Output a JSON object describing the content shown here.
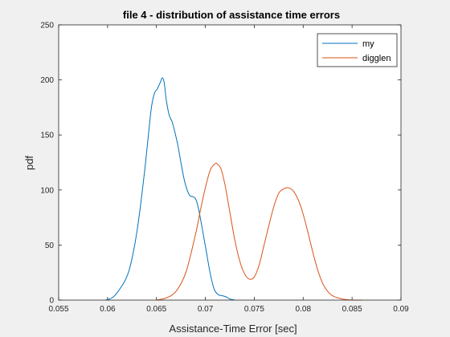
{
  "chart_data": {
    "type": "line",
    "title": "file 4 - distribution of assistance time errors",
    "xlabel": "Assistance-Time Error [sec]",
    "ylabel": "pdf",
    "xlim": [
      0.055,
      0.09
    ],
    "ylim": [
      0,
      250
    ],
    "xticks": [
      0.055,
      0.06,
      0.065,
      0.07,
      0.075,
      0.08,
      0.085,
      0.09
    ],
    "xtick_labels": [
      "0.055",
      "0.06",
      "0.065",
      "0.07",
      "0.075",
      "0.08",
      "0.085",
      "0.09"
    ],
    "yticks": [
      0,
      50,
      100,
      150,
      200,
      250
    ],
    "ytick_labels": [
      "0",
      "50",
      "100",
      "150",
      "200",
      "250"
    ],
    "legend_position": "top-right",
    "grid": false,
    "series": [
      {
        "name": "my",
        "color": "#0072BD",
        "x": [
          0.0598,
          0.0602,
          0.0606,
          0.061,
          0.0614,
          0.0618,
          0.0622,
          0.0626,
          0.063,
          0.0634,
          0.0638,
          0.0642,
          0.0645,
          0.0648,
          0.0651,
          0.0654,
          0.0656,
          0.0658,
          0.066,
          0.0663,
          0.0666,
          0.0669,
          0.0672,
          0.0675,
          0.0678,
          0.0681,
          0.0684,
          0.0687,
          0.069,
          0.0693,
          0.0697,
          0.0701,
          0.0705,
          0.0709,
          0.0713,
          0.0717,
          0.0721,
          0.0725,
          0.073
        ],
        "y": [
          0,
          1,
          3,
          7,
          12,
          18,
          27,
          42,
          62,
          88,
          118,
          152,
          176,
          188,
          192,
          198,
          202,
          197,
          182,
          168,
          162,
          152,
          140,
          125,
          111,
          101,
          95,
          94,
          92,
          83,
          64,
          44,
          24,
          10,
          5,
          4,
          3,
          1,
          0
        ]
      },
      {
        "name": "digglen",
        "color": "#D95319",
        "x": [
          0.065,
          0.066,
          0.067,
          0.068,
          0.069,
          0.0695,
          0.07,
          0.0705,
          0.071,
          0.0713,
          0.0716,
          0.072,
          0.0725,
          0.073,
          0.0735,
          0.074,
          0.0745,
          0.075,
          0.0755,
          0.076,
          0.0765,
          0.077,
          0.0775,
          0.078,
          0.0785,
          0.079,
          0.0795,
          0.08,
          0.0805,
          0.081,
          0.0815,
          0.082,
          0.0825,
          0.083,
          0.084,
          0.085,
          0.086
        ],
        "y": [
          0,
          2,
          8,
          25,
          60,
          82,
          102,
          118,
          124,
          123,
          119,
          105,
          80,
          55,
          36,
          24,
          19,
          21,
          32,
          50,
          68,
          85,
          97,
          101,
          102,
          99,
          91,
          78,
          61,
          43,
          27,
          15,
          8,
          4,
          1,
          0,
          0
        ]
      }
    ]
  }
}
